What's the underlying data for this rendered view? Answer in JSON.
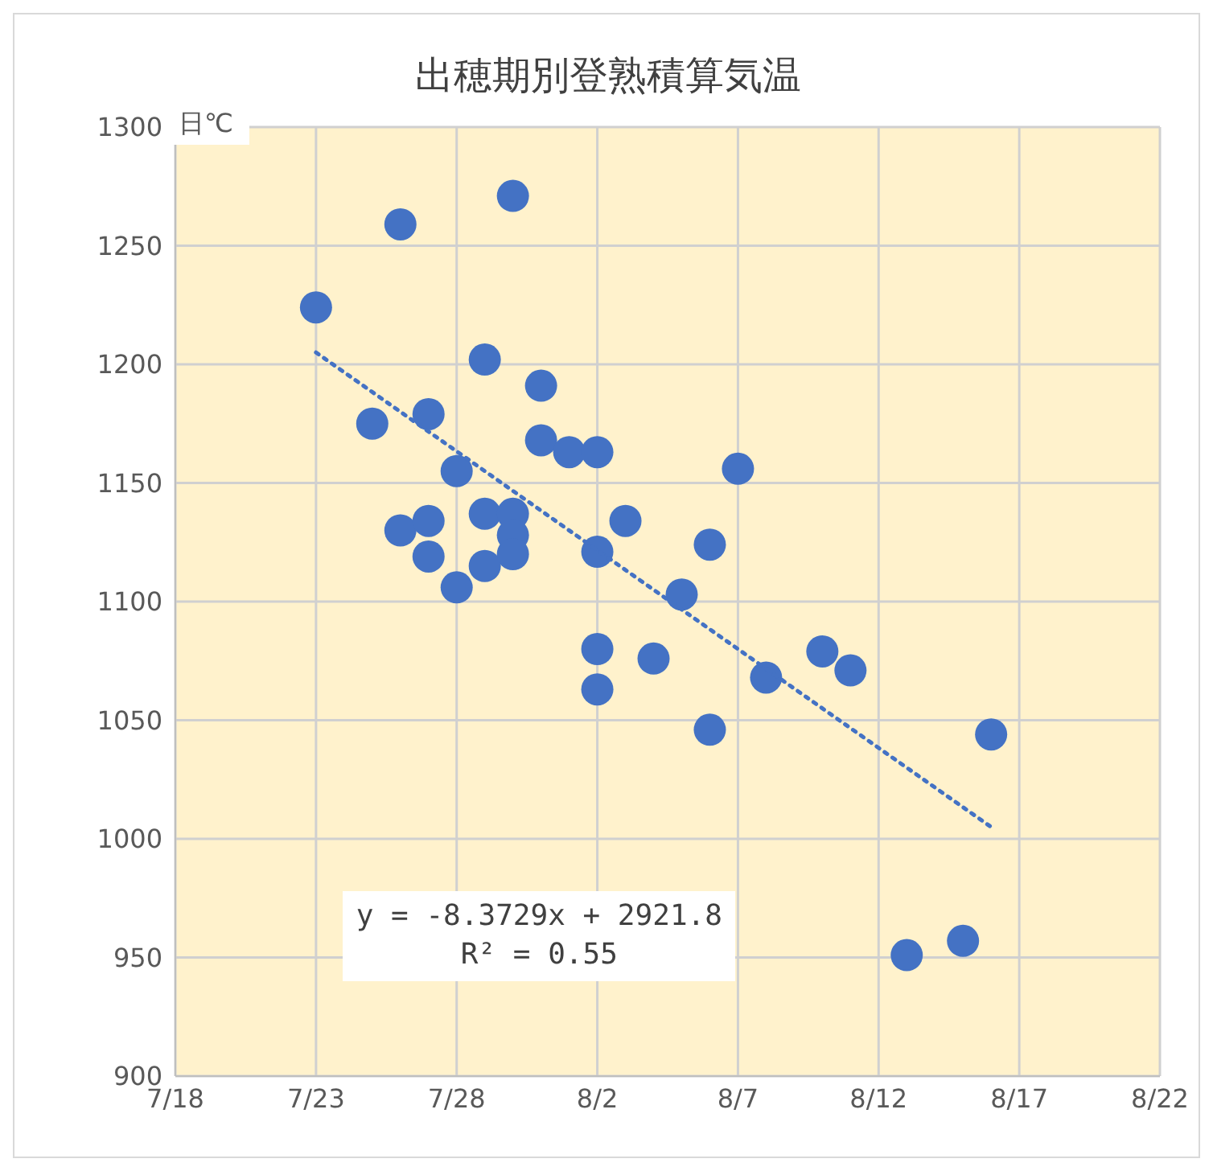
{
  "chart_data": {
    "type": "scatter",
    "title": "出穂期別登熟積算気温",
    "ylabel": "日℃",
    "annotations": [
      "y = -8.3729x + 2921.8",
      "R² = 0.55"
    ],
    "xlim": [
      "--07-18",
      "--08-22"
    ],
    "xticks": [
      {
        "value": "--07-18",
        "label": "7/18"
      },
      {
        "value": "--07-23",
        "label": "7/23"
      },
      {
        "value": "--07-28",
        "label": "7/28"
      },
      {
        "value": "--08-02",
        "label": "8/2"
      },
      {
        "value": "--08-07",
        "label": "8/7"
      },
      {
        "value": "--08-12",
        "label": "8/12"
      },
      {
        "value": "--08-17",
        "label": "8/17"
      },
      {
        "value": "--08-22",
        "label": "8/22"
      }
    ],
    "ylim": [
      900,
      1300
    ],
    "yticks": [
      900,
      950,
      1000,
      1050,
      1100,
      1150,
      1200,
      1250,
      1300
    ],
    "grid": true,
    "marker": "circle",
    "series": [
      {
        "color": "#4472c4",
        "x": [
          "--07-23",
          "--07-25",
          "--07-26",
          "--07-26",
          "--07-27",
          "--07-27",
          "--07-27",
          "--07-28",
          "--07-28",
          "--07-29",
          "--07-29",
          "--07-29",
          "--07-30",
          "--07-30",
          "--07-30",
          "--07-30",
          "--07-31",
          "--07-31",
          "--08-01",
          "--08-02",
          "--08-02",
          "--08-02",
          "--08-02",
          "--08-03",
          "--08-04",
          "--08-05",
          "--08-06",
          "--08-06",
          "--08-07",
          "--08-08",
          "--08-10",
          "--08-11",
          "--08-13",
          "--08-15",
          "--08-16"
        ],
        "values": [
          1224,
          1175,
          1259,
          1130,
          1179,
          1134,
          1119,
          1155,
          1106,
          1202,
          1137,
          1115,
          1271,
          1137,
          1128,
          1120,
          1191,
          1168,
          1163,
          1163,
          1121,
          1080,
          1063,
          1134,
          1076,
          1103,
          1124,
          1046,
          1156,
          1068,
          1079,
          1071,
          951,
          957,
          1044
        ]
      },
      {
        "type": "line",
        "color": "#4472c4",
        "marker": "none",
        "line_style": "dotted",
        "x": [
          "--07-23",
          "--08-16"
        ],
        "values": [
          1205,
          1005
        ]
      }
    ]
  }
}
